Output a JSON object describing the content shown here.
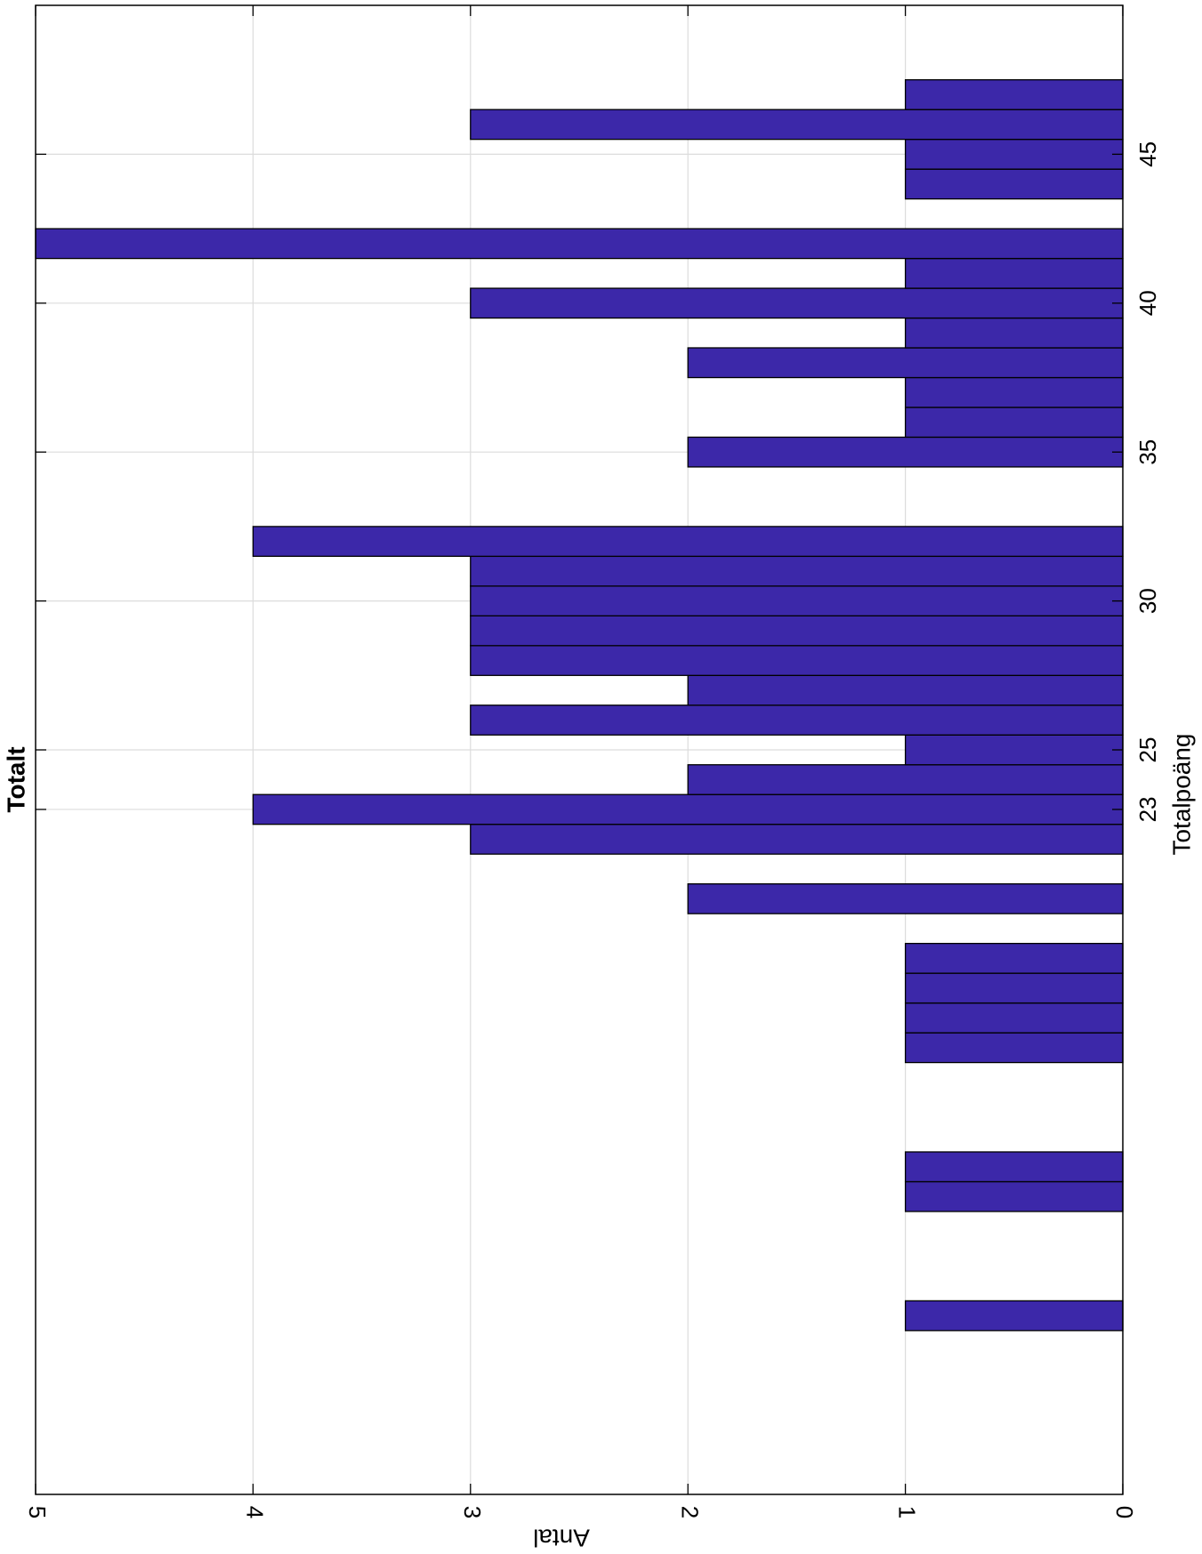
{
  "chart_data": {
    "type": "bar",
    "orientation": "rotated-90",
    "title": "Totalt",
    "xlabel": "Totalpoäng",
    "ylabel": "Antal",
    "xlim": [
      0,
      50
    ],
    "ylim": [
      0,
      5
    ],
    "xticks": [
      23,
      25,
      30,
      35,
      40,
      45
    ],
    "yticks": [
      0,
      1,
      2,
      3,
      4,
      5
    ],
    "grid": true,
    "bar_width": 1,
    "bar_color": "#3c28a9",
    "edge_color": "#000000",
    "x": [
      6,
      10,
      11,
      15,
      16,
      17,
      18,
      20,
      22,
      23,
      24,
      25,
      26,
      27,
      28,
      29,
      30,
      31,
      32,
      35,
      36,
      37,
      38,
      39,
      40,
      41,
      42,
      44,
      45,
      46,
      47
    ],
    "values": [
      1,
      1,
      1,
      1,
      1,
      1,
      1,
      2,
      3,
      4,
      2,
      1,
      3,
      2,
      3,
      3,
      3,
      3,
      4,
      2,
      1,
      1,
      2,
      1,
      3,
      1,
      5,
      1,
      1,
      3,
      1
    ]
  }
}
